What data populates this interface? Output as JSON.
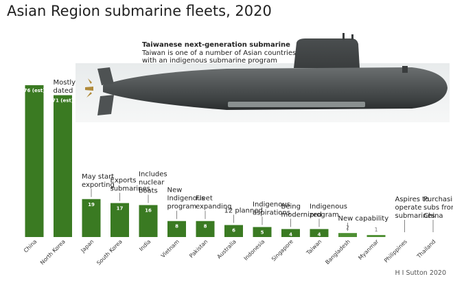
{
  "title": "Asian Region submarine fleets, 2020",
  "credit": "H I Sutton 2020",
  "callout": {
    "heading": "Taiwanese next-generation submarine",
    "line1": "Taiwan is one of a number of Asian countries",
    "line2": "with an indigenous submarine program"
  },
  "colors": {
    "bar": "#3a7a22",
    "bar_light": "#4e8f33",
    "leader": "#666666",
    "text": "#222222"
  },
  "chart_data": {
    "type": "bar",
    "title": "Asian Region submarine fleets, 2020",
    "categories": [
      "China",
      "North Korea",
      "Japan",
      "South Korea",
      "India",
      "Vietnam",
      "Pakistan",
      "Australia",
      "Indonesia",
      "Singapore",
      "Taiwan",
      "Bangladesh",
      "Myanmar",
      "Philippines",
      "Thailand"
    ],
    "values": [
      76,
      71,
      19,
      17,
      16,
      8,
      8,
      6,
      5,
      4,
      4,
      2,
      1,
      0,
      0
    ],
    "value_labels": [
      "76 (est)",
      "71 (est)",
      "19",
      "17",
      "16",
      "8",
      "8",
      "6",
      "5",
      "4",
      "4",
      "2",
      "1",
      "",
      ""
    ],
    "annotations": [
      "",
      "Mostly\ndated",
      "May start\nexporting",
      "Exports\nsubmarines",
      "Includes\nnuclear\nboats",
      "New\nIndigenous\nprogram",
      "Fleet\nexpanding",
      "12 planned",
      "Indigenous\naspirations",
      "Being\nmodernized",
      "Indigenous\nprogram",
      "New capability",
      "",
      "Aspires to\noperate\nsubmarines",
      "Purchasing\nsubs from\nChina"
    ],
    "ylim": [
      0,
      76
    ],
    "grid": false,
    "legend": "none"
  }
}
